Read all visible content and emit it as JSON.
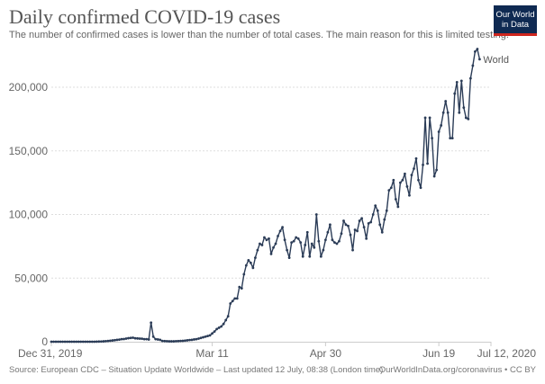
{
  "header": {
    "title": "Daily confirmed COVID-19 cases",
    "subtitle": "The number of confirmed cases is lower than the number of total cases. The main reason for this is limited testing.",
    "logo_line1": "Our World",
    "logo_line2": "in Data"
  },
  "footer": {
    "source": "Source: European CDC – Situation Update Worldwide – Last updated 12 July, 08:38 (London time)",
    "credit": "OurWorldInData.org/coronavirus • CC BY"
  },
  "colors": {
    "line": "#2b3c57",
    "grid": "#dddddd",
    "logo_bg": "#0f2a52",
    "logo_accent": "#ce261e"
  },
  "chart_data": {
    "type": "line",
    "title": "Daily confirmed COVID-19 cases",
    "xlabel": "",
    "ylabel": "",
    "ylim": [
      0,
      230000
    ],
    "xlim_days": [
      0,
      194
    ],
    "grid": true,
    "legend": "end-of-line label",
    "y_ticks": [
      {
        "value": 0,
        "label": "0"
      },
      {
        "value": 50000,
        "label": "50,000"
      },
      {
        "value": 100000,
        "label": "100,000"
      },
      {
        "value": 150000,
        "label": "150,000"
      },
      {
        "value": 200000,
        "label": "200,000"
      }
    ],
    "x_ticks": [
      {
        "day": 0,
        "label": "Dec 31, 2019"
      },
      {
        "day": 71,
        "label": "Mar 11"
      },
      {
        "day": 121,
        "label": "Apr 30"
      },
      {
        "day": 171,
        "label": "Jun 19"
      },
      {
        "day": 194,
        "label": "Jul 12, 2020"
      }
    ],
    "series": [
      {
        "name": "World",
        "x_start": "Dec 31, 2019",
        "x_unit": "day",
        "values": [
          0,
          0,
          0,
          0,
          0,
          0,
          0,
          0,
          0,
          0,
          0,
          0,
          0,
          0,
          0,
          0,
          0,
          0,
          0,
          0,
          100,
          150,
          200,
          300,
          450,
          600,
          800,
          1000,
          1200,
          1500,
          1700,
          2000,
          2100,
          2500,
          2800,
          3000,
          3200,
          2700,
          2600,
          2500,
          2400,
          2000,
          2000,
          1800,
          15000,
          4000,
          2000,
          1800,
          1500,
          600,
          500,
          400,
          300,
          300,
          300,
          400,
          500,
          600,
          700,
          900,
          1100,
          1300,
          1500,
          1800,
          2000,
          2500,
          3000,
          3500,
          4000,
          4500,
          5000,
          6500,
          8000,
          10000,
          11000,
          12000,
          14000,
          17000,
          20000,
          30000,
          32000,
          34000,
          34000,
          43000,
          42000,
          53000,
          60000,
          64000,
          62000,
          58000,
          66000,
          72000,
          77000,
          76000,
          82000,
          80000,
          81000,
          69000,
          74000,
          77000,
          83000,
          87000,
          90000,
          80000,
          72000,
          66000,
          78000,
          79000,
          82000,
          81000,
          78000,
          67000,
          76000,
          86000,
          67000,
          77000,
          74000,
          100000,
          79000,
          67000,
          72000,
          80000,
          86000,
          92000,
          80000,
          78000,
          77000,
          79000,
          85000,
          95000,
          92000,
          91000,
          84000,
          72000,
          88000,
          87000,
          95000,
          97000,
          90000,
          81000,
          93000,
          94000,
          100000,
          107000,
          103000,
          92000,
          86000,
          96000,
          103000,
          119000,
          121000,
          127000,
          112000,
          106000,
          125000,
          127000,
          132000,
          122000,
          115000,
          131000,
          136000,
          144000,
          127000,
          121000,
          139000,
          176000,
          140000,
          176000,
          160000,
          130000,
          135000,
          165000,
          170000,
          180000,
          189000,
          180000,
          160000,
          160000,
          195000,
          204000,
          180000,
          205000,
          184000,
          176000,
          175000,
          207000,
          217000,
          228000,
          230000,
          222000
        ]
      }
    ]
  }
}
